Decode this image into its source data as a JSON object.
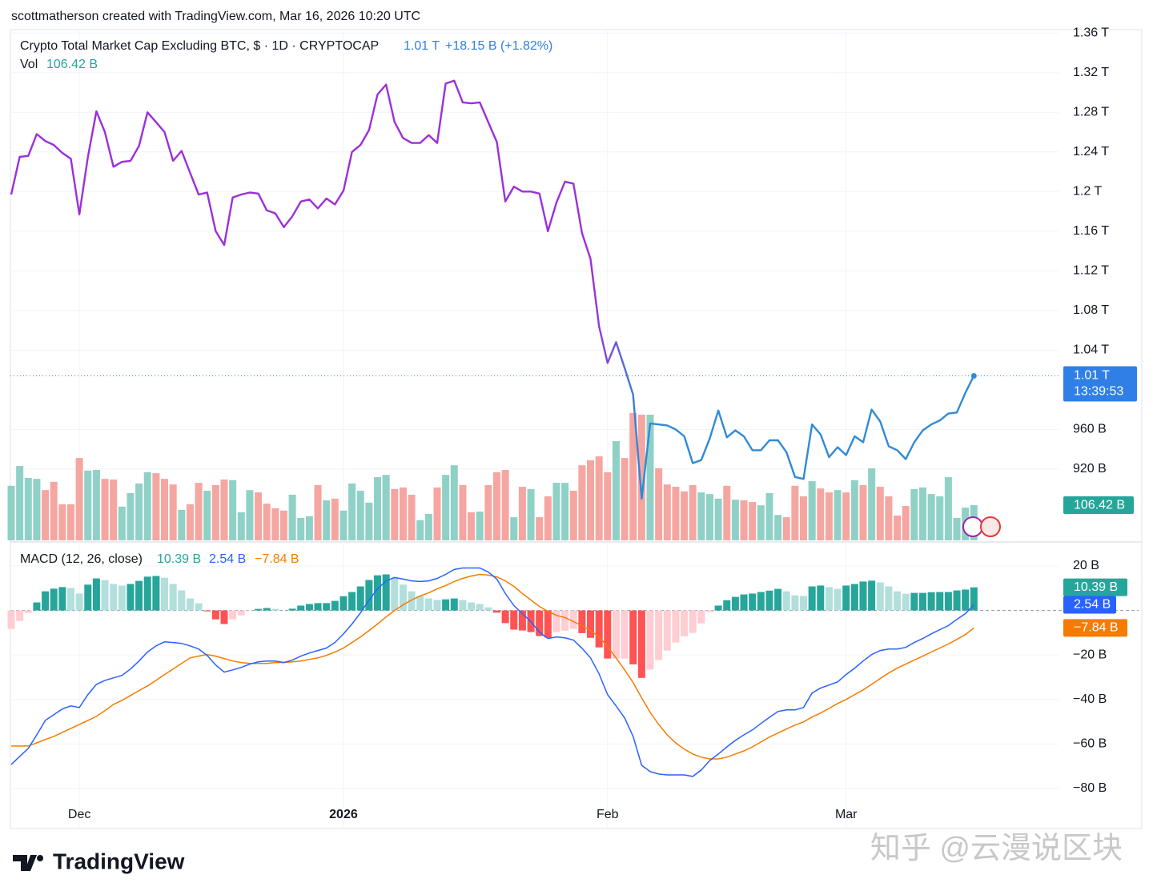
{
  "header": "scottmatherson created with TradingView.com, Mar 16, 2026 10:20 UTC",
  "footer": {
    "logo": "TradingView",
    "watermark": "知乎 @云漫说区块"
  },
  "chart_data": [
    {
      "type": "line",
      "title": "Crypto Total Market Cap Excluding BTC, $ · 1D · CRYPTOCAP",
      "price_label": "1.01 T",
      "change_label": "+18.15 B (+1.82%)",
      "countdown": "13:39:53",
      "categories": [
        null,
        null,
        null,
        null,
        null,
        null,
        null,
        null,
        "Dec",
        null,
        null,
        null,
        null,
        null,
        null,
        null,
        null,
        null,
        null,
        null,
        null,
        null,
        null,
        null,
        null,
        null,
        null,
        null,
        null,
        null,
        null,
        null,
        null,
        null,
        null,
        null,
        null,
        null,
        null,
        "2026",
        null,
        null,
        null,
        null,
        null,
        null,
        null,
        null,
        null,
        null,
        null,
        null,
        null,
        null,
        null,
        null,
        null,
        null,
        null,
        null,
        null,
        null,
        null,
        null,
        null,
        null,
        null,
        null,
        null,
        null,
        "Feb",
        null,
        null,
        null,
        null,
        null,
        null,
        null,
        null,
        null,
        null,
        null,
        null,
        null,
        null,
        null,
        null,
        null,
        null,
        null,
        null,
        null,
        null,
        null,
        null,
        null,
        null,
        null,
        "Mar",
        null,
        null,
        null,
        null,
        null,
        null,
        null,
        null,
        null,
        null,
        null,
        null,
        null,
        null,
        null
      ],
      "values": [
        1197,
        1235,
        1236,
        1258,
        1251,
        1247,
        1239,
        1233,
        1177,
        1235,
        1281,
        1260,
        1225,
        1230,
        1231,
        1246,
        1280,
        1270,
        1260,
        1231,
        1241,
        1219,
        1197,
        1199,
        1160,
        1146,
        1194,
        1197,
        1199,
        1198,
        1181,
        1178,
        1164,
        1175,
        1190,
        1192,
        1183,
        1193,
        1187,
        1201,
        1240,
        1247,
        1262,
        1298,
        1308,
        1270,
        1254,
        1249,
        1249,
        1257,
        1249,
        1309,
        1312,
        1290,
        1289,
        1290,
        1270,
        1250,
        1190,
        1205,
        1200,
        1200,
        1198,
        1160,
        1189,
        1210,
        1208,
        1158,
        1132,
        1064,
        1027,
        1048,
        1022,
        995,
        890,
        966,
        965,
        964,
        960,
        953,
        926,
        929,
        951,
        979,
        952,
        959,
        953,
        939,
        939,
        949,
        949,
        937,
        912,
        910,
        965,
        955,
        932,
        942,
        934,
        953,
        947,
        980,
        968,
        943,
        939,
        930,
        947,
        959,
        965,
        969,
        976,
        977,
        997,
        1014
      ],
      "colors": [
        "#9c2fd8",
        "#2f8ad6"
      ],
      "ylim": [
        848,
        1361
      ],
      "yticks": [
        {
          "value": 1360,
          "label": "1.36 T"
        },
        {
          "value": 1320,
          "label": "1.32 T"
        },
        {
          "value": 1280,
          "label": "1.28 T"
        },
        {
          "value": 1240,
          "label": "1.24 T"
        },
        {
          "value": 1200,
          "label": "1.2 T"
        },
        {
          "value": 1160,
          "label": "1.16 T"
        },
        {
          "value": 1120,
          "label": "1.12 T"
        },
        {
          "value": 1080,
          "label": "1.08 T"
        },
        {
          "value": 1040,
          "label": "1.04 T"
        },
        {
          "value": 960,
          "label": "960 B"
        },
        {
          "value": 920,
          "label": "920 B"
        }
      ],
      "grid": true,
      "volume": {
        "name": "Vol",
        "values": [
          165,
          225,
          189,
          186,
          152,
          177,
          109,
          109,
          249,
          211,
          213,
          186,
          184,
          102,
          143,
          172,
          206,
          203,
          186,
          169,
          92,
          109,
          174,
          150,
          167,
          184,
          182,
          85,
          152,
          145,
          111,
          97,
          90,
          138,
          68,
          73,
          167,
          121,
          126,
          90,
          172,
          150,
          114,
          191,
          198,
          155,
          160,
          138,
          61,
          80,
          160,
          198,
          227,
          167,
          85,
          87,
          167,
          206,
          213,
          70,
          162,
          155,
          70,
          133,
          174,
          174,
          150,
          227,
          242,
          254,
          206,
          300,
          249,
          385,
          380,
          380,
          218,
          169,
          162,
          148,
          167,
          145,
          140,
          126,
          165,
          123,
          121,
          116,
          106,
          143,
          77,
          70,
          165,
          133,
          179,
          157,
          145,
          152,
          145,
          182,
          167,
          218,
          162,
          133,
          75,
          104,
          155,
          160,
          140,
          133,
          191,
          68,
          99,
          106.42
        ],
        "value_label": "106.42 B",
        "ylim": [
          0,
          1537
        ],
        "colors": [
          "#8fd1c6",
          "#f5a6a1"
        ]
      }
    },
    {
      "type": "macd",
      "title": "MACD (12, 26, close)",
      "ylim": [
        -98,
        29.7
      ],
      "yticks": [
        {
          "value": 20,
          "label": "20 B"
        },
        {
          "value": -20,
          "label": "−20 B"
        },
        {
          "value": -40,
          "label": "−40 B"
        },
        {
          "value": -60,
          "label": "−60 B"
        },
        {
          "value": -80,
          "label": "−80 B"
        }
      ],
      "histogram": {
        "values": [
          -8.3,
          -4.7,
          -1.1,
          3.6,
          8.6,
          9.8,
          10.5,
          10.1,
          7.6,
          11.6,
          14.4,
          13.6,
          11.9,
          11.2,
          11.9,
          13.3,
          15.2,
          15.5,
          14.7,
          11.9,
          9.0,
          5.4,
          3.2,
          -0.4,
          -4.0,
          -6.1,
          -4.0,
          -2.2,
          -0.3,
          0.7,
          1.1,
          0.7,
          0,
          0.8,
          2.2,
          2.9,
          3.3,
          3.3,
          4.3,
          6.4,
          8.3,
          10.8,
          13.7,
          15.8,
          16.2,
          14.8,
          11.6,
          8.6,
          6.5,
          5.4,
          4.7,
          5.0,
          5.4,
          4.7,
          3.6,
          2.9,
          1.4,
          -1.0,
          -5.7,
          -8.6,
          -9.0,
          -9.7,
          -11.5,
          -12.2,
          -9.7,
          -9.1,
          -8.3,
          -10.2,
          -12.3,
          -16.6,
          -21.6,
          -21.6,
          -21.6,
          -24.2,
          -30.3,
          -26.6,
          -22.3,
          -18.0,
          -14.4,
          -11.6,
          -10.1,
          -5.8,
          -0.7,
          2.2,
          4.6,
          6.1,
          7.2,
          7.6,
          8.3,
          8.9,
          9.7,
          8.6,
          6.8,
          6.5,
          10.8,
          11.2,
          10.5,
          9.7,
          11.2,
          11.9,
          13.0,
          13.4,
          12.6,
          10.8,
          8.6,
          7.5,
          7.9,
          7.9,
          8.2,
          8.3,
          8.3,
          9.0,
          9.4,
          10.39
        ],
        "value_label": "10.39 B",
        "colors": [
          "#26a69a",
          "#b2dfdb",
          "#ff5252",
          "#ffcdd2"
        ]
      },
      "macd": {
        "values": [
          -69.2,
          -65.6,
          -62.0,
          -55.9,
          -49.4,
          -46.8,
          -44.3,
          -42.9,
          -43.6,
          -37.8,
          -33.2,
          -31.4,
          -30.3,
          -29.2,
          -26.3,
          -22.7,
          -18.7,
          -15.9,
          -14.1,
          -14.4,
          -14.8,
          -15.9,
          -17.3,
          -20.2,
          -24.5,
          -27.7,
          -26.7,
          -25.6,
          -24.1,
          -23.1,
          -22.7,
          -22.7,
          -23.4,
          -22.3,
          -20.5,
          -19.1,
          -18.0,
          -16.9,
          -14.4,
          -10.5,
          -6.1,
          -1.1,
          4.7,
          9.7,
          13.3,
          14.8,
          14.1,
          13.3,
          13.0,
          13.3,
          14.4,
          16.2,
          18.4,
          19.1,
          19.1,
          19.1,
          17.3,
          14.1,
          7.6,
          2.2,
          -1.4,
          -5.0,
          -9.7,
          -12.6,
          -11.9,
          -12.3,
          -13.3,
          -17.0,
          -21.3,
          -28.5,
          -37.8,
          -42.9,
          -48.3,
          -56.6,
          -69.6,
          -72.4,
          -73.5,
          -73.9,
          -73.9,
          -73.9,
          -74.6,
          -71.7,
          -67.4,
          -64.5,
          -61.3,
          -58.4,
          -55.9,
          -53.7,
          -50.8,
          -48.0,
          -45.4,
          -44.7,
          -44.7,
          -43.6,
          -37.1,
          -34.9,
          -33.5,
          -32.1,
          -28.8,
          -25.9,
          -22.7,
          -19.8,
          -18.0,
          -17.3,
          -17.3,
          -16.6,
          -14.4,
          -12.6,
          -10.5,
          -8.6,
          -6.8,
          -4.0,
          -1.4,
          2.54
        ],
        "value_label": "2.54 B",
        "color": "#2962ff"
      },
      "signal": {
        "values": [
          -60.9,
          -60.9,
          -60.9,
          -59.5,
          -58.0,
          -56.6,
          -54.8,
          -53.0,
          -51.2,
          -49.4,
          -47.6,
          -45.0,
          -42.2,
          -40.4,
          -38.2,
          -36.0,
          -33.9,
          -31.4,
          -28.8,
          -26.3,
          -23.8,
          -21.3,
          -20.5,
          -19.8,
          -20.5,
          -21.6,
          -22.7,
          -23.4,
          -23.8,
          -23.8,
          -23.8,
          -23.4,
          -23.4,
          -23.1,
          -22.7,
          -22.0,
          -21.3,
          -20.2,
          -18.7,
          -16.9,
          -14.4,
          -11.9,
          -9.0,
          -6.1,
          -2.9,
          0,
          2.5,
          4.7,
          6.5,
          7.9,
          9.7,
          11.2,
          13.0,
          14.4,
          15.5,
          16.2,
          15.9,
          15.1,
          13.3,
          10.8,
          7.6,
          4.7,
          1.8,
          -0.4,
          -2.2,
          -3.2,
          -5.0,
          -6.8,
          -9.0,
          -11.9,
          -16.2,
          -21.3,
          -26.7,
          -32.4,
          -39.3,
          -45.8,
          -51.2,
          -55.9,
          -59.5,
          -62.3,
          -64.5,
          -65.9,
          -66.7,
          -66.7,
          -65.9,
          -64.5,
          -63.1,
          -61.3,
          -59.1,
          -56.9,
          -55.1,
          -53.3,
          -51.5,
          -50.1,
          -47.9,
          -46.1,
          -44.0,
          -41.8,
          -40.0,
          -37.8,
          -35.7,
          -33.2,
          -30.6,
          -28.1,
          -25.9,
          -24.1,
          -22.3,
          -20.5,
          -18.7,
          -16.9,
          -15.1,
          -13.0,
          -10.8,
          -7.84
        ],
        "value_label": "−7.84 B",
        "color": "#f57c00"
      }
    }
  ]
}
